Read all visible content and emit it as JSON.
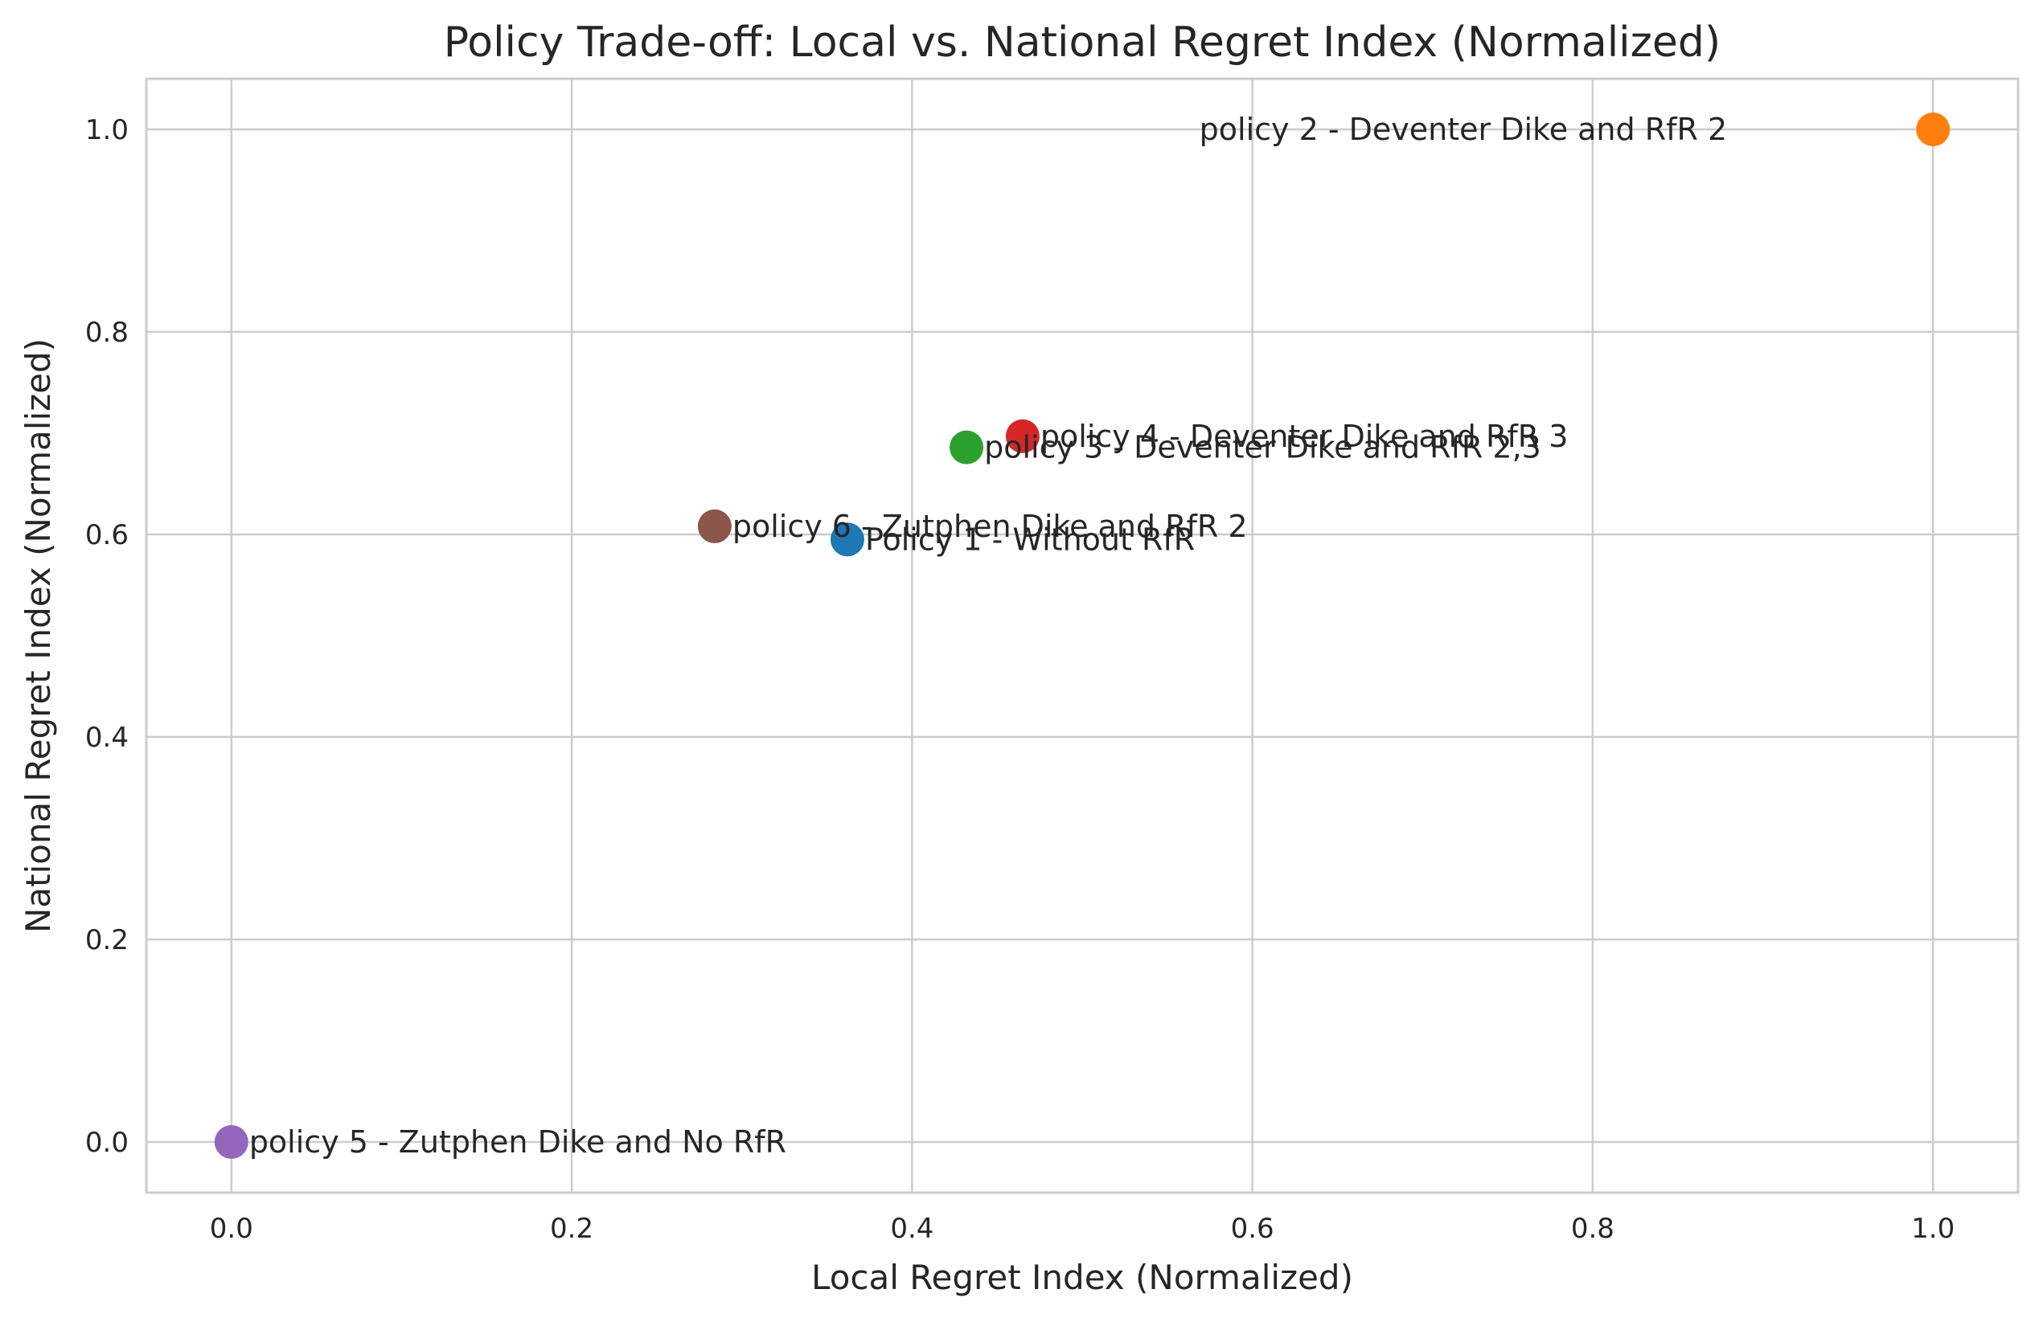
{
  "chart_data": {
    "type": "scatter",
    "title": "Policy Trade-off: Local vs. National Regret Index (Normalized)",
    "xlabel": "Local Regret Index (Normalized)",
    "ylabel": "National Regret Index (Normalized)",
    "xlim": [
      -0.05,
      1.05
    ],
    "ylim": [
      -0.05,
      1.05
    ],
    "xticks": [
      0.0,
      0.2,
      0.4,
      0.6,
      0.8,
      1.0
    ],
    "yticks": [
      0.0,
      0.2,
      0.4,
      0.6,
      0.8,
      1.0
    ],
    "xtick_labels": [
      "0.0",
      "0.2",
      "0.4",
      "0.6",
      "0.8",
      "1.0"
    ],
    "ytick_labels": [
      "0.0",
      "0.2",
      "0.4",
      "0.6",
      "0.8",
      "1.0"
    ],
    "grid": true,
    "points": [
      {
        "label": "Policy 1 - Without RfR",
        "x": 0.362,
        "y": 0.595,
        "color": "#1f77b4",
        "label_align": "left"
      },
      {
        "label": "policy 2 - Deventer Dike and RfR 2",
        "x": 1.0,
        "y": 1.0,
        "color": "#ff7f0e",
        "label_align": "right"
      },
      {
        "label": "policy 3 - Deventer Dike and RfR 2,3",
        "x": 0.432,
        "y": 0.686,
        "color": "#2ca02c",
        "label_align": "left"
      },
      {
        "label": "policy 4 - Deventer Dike and RfR 3",
        "x": 0.465,
        "y": 0.697,
        "color": "#d62728",
        "label_align": "left"
      },
      {
        "label": "policy 5 - Zutphen Dike and No RfR",
        "x": 0.0,
        "y": 0.0,
        "color": "#9467bd",
        "label_align": "left"
      },
      {
        "label": "policy 6 - Zutphen Dike and RfR 2",
        "x": 0.284,
        "y": 0.608,
        "color": "#8c564b",
        "label_align": "left"
      }
    ]
  }
}
